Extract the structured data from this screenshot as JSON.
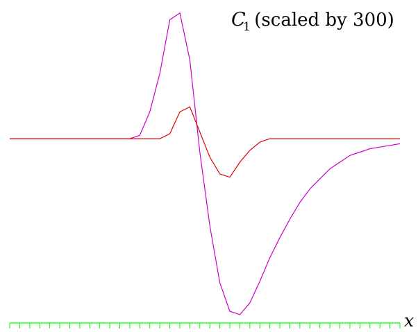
{
  "chart_data": {
    "type": "line",
    "title": {
      "symbol": "C",
      "subscript": "1",
      "rest": " (scaled by 300)"
    },
    "xlabel": "x",
    "ylabel": "",
    "grid": false,
    "legend": "none",
    "axis_color": "#00ff00",
    "xlim": [
      0,
      39
    ],
    "ylim": [
      -1.1,
      0.77
    ],
    "x": [
      0,
      1,
      2,
      3,
      4,
      5,
      6,
      7,
      8,
      9,
      10,
      11,
      12,
      13,
      14,
      15,
      16,
      17,
      18,
      19,
      20,
      21,
      22,
      23,
      24,
      25,
      26,
      27,
      28,
      29,
      30,
      31,
      32,
      33,
      34,
      35,
      36,
      37,
      38,
      39
    ],
    "series": [
      {
        "color": "#cc00cc",
        "values": [
          0,
          0,
          0,
          0,
          0,
          0,
          0,
          0,
          0,
          0,
          0,
          0,
          0,
          0.02,
          0.16,
          0.39,
          0.71,
          0.75,
          0.47,
          -0.08,
          -0.52,
          -0.86,
          -1.03,
          -1.05,
          -0.98,
          -0.85,
          -0.71,
          -0.59,
          -0.48,
          -0.38,
          -0.3,
          -0.24,
          -0.18,
          -0.14,
          -0.1,
          -0.08,
          -0.06,
          -0.05,
          -0.04,
          -0.03
        ]
      },
      {
        "color": "#dd0000",
        "values": [
          0,
          0,
          0,
          0,
          0,
          0,
          0,
          0,
          0,
          0,
          0,
          0,
          0,
          0,
          0,
          0,
          0.03,
          0.16,
          0.19,
          0.04,
          -0.11,
          -0.21,
          -0.23,
          -0.14,
          -0.07,
          -0.02,
          0,
          0,
          0,
          0,
          0,
          0,
          0,
          0,
          0,
          0,
          0,
          0,
          0,
          0
        ]
      }
    ]
  }
}
